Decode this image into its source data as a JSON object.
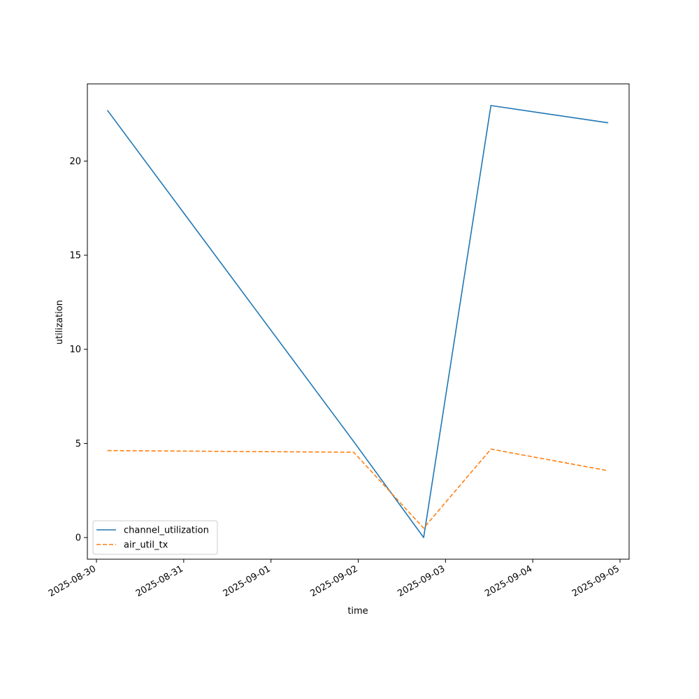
{
  "chart_data": {
    "type": "line",
    "xlabel": "time",
    "ylabel": "utilization",
    "x_type": "date",
    "xlim": [
      "2025-08-29 21:30",
      "2025-09-05 02:30"
    ],
    "ylim": [
      -1.15,
      24.1
    ],
    "x_ticks": [
      "2025-08-30",
      "2025-08-31",
      "2025-09-01",
      "2025-09-02",
      "2025-09-03",
      "2025-09-04",
      "2025-09-05"
    ],
    "y_ticks": [
      0,
      5,
      10,
      15,
      20
    ],
    "grid": false,
    "legend_position": "lower-left",
    "series": [
      {
        "name": "channel_utilization",
        "color": "#1f77b4",
        "line_style": "solid",
        "x": [
          "2025-08-30 03:00",
          "2025-09-01 22:45",
          "2025-09-02 18:00",
          "2025-09-03 12:30",
          "2025-09-04 20:45"
        ],
        "y": [
          22.7,
          5.1,
          0.0,
          22.95,
          22.03
        ]
      },
      {
        "name": "air_util_tx",
        "color": "#ff7f0e",
        "line_style": "dashed",
        "x": [
          "2025-08-30 03:00",
          "2025-09-01 22:45",
          "2025-09-02 18:00",
          "2025-09-03 12:30",
          "2025-09-04 20:45"
        ],
        "y": [
          4.62,
          4.53,
          0.5,
          4.7,
          3.55
        ]
      }
    ]
  }
}
